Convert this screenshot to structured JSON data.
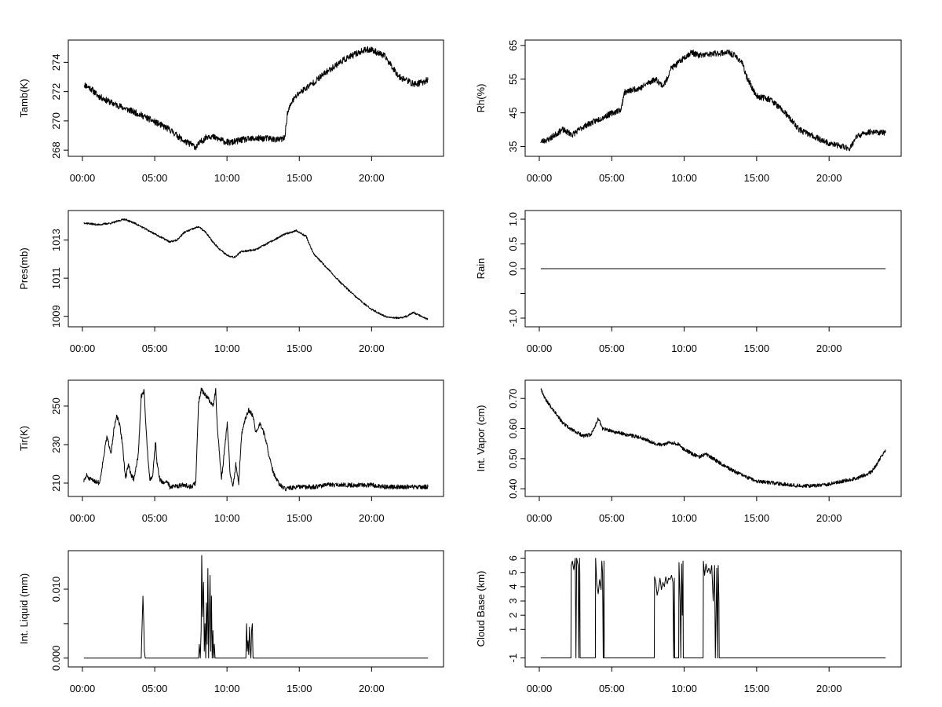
{
  "colors": {
    "background": "#ffffff",
    "line": "#000000"
  },
  "chart_data": [
    {
      "type": "line",
      "id": "tamb",
      "title": "",
      "xlabel": "",
      "ylabel": "Tamb(K)",
      "xlim": [
        0,
        24
      ],
      "ylim": [
        267.9,
        275.2
      ],
      "yticks": [
        268,
        270,
        272,
        274
      ],
      "xticks": [
        {
          "v": 0,
          "label": "00:00"
        },
        {
          "v": 5,
          "label": "05:00"
        },
        {
          "v": 10,
          "label": "10:00"
        },
        {
          "v": 15,
          "label": "15:00"
        },
        {
          "v": 20,
          "label": "20:00"
        }
      ],
      "noise": 0.22,
      "seed": 11,
      "series": [
        {
          "name": "Tamb",
          "x": [
            0,
            0.5,
            1,
            2,
            3,
            4,
            5,
            6,
            6.5,
            7,
            7.5,
            7.8,
            8.2,
            8.7,
            9.3,
            9.8,
            10.2,
            11,
            12,
            13,
            13.5,
            14,
            14.2,
            14.5,
            15,
            16,
            17,
            18,
            19,
            19.5,
            20,
            21,
            22,
            22.5,
            23,
            23.5,
            24
          ],
          "values": [
            272.5,
            272.2,
            271.7,
            271.2,
            270.8,
            270.4,
            269.9,
            269.4,
            269.0,
            268.6,
            268.4,
            268.2,
            268.6,
            269.0,
            268.8,
            268.6,
            268.5,
            268.7,
            268.8,
            268.8,
            268.7,
            268.8,
            270.5,
            271.3,
            271.9,
            272.6,
            273.4,
            274.1,
            274.6,
            274.8,
            274.9,
            274.4,
            273.0,
            272.8,
            272.5,
            272.6,
            272.8
          ]
        }
      ]
    },
    {
      "type": "line",
      "id": "rh",
      "title": "",
      "xlabel": "",
      "ylabel": "Rh(%)",
      "xlim": [
        0,
        24
      ],
      "ylim": [
        33.5,
        65.2
      ],
      "yticks": [
        35,
        45,
        55,
        65
      ],
      "xticks": [
        {
          "v": 0,
          "label": "00:00"
        },
        {
          "v": 5,
          "label": "05:00"
        },
        {
          "v": 10,
          "label": "10:00"
        },
        {
          "v": 15,
          "label": "15:00"
        },
        {
          "v": 20,
          "label": "20:00"
        }
      ],
      "noise": 0.9,
      "seed": 23,
      "series": [
        {
          "name": "Rh",
          "x": [
            0,
            0.5,
            1,
            1.5,
            2,
            2.2,
            3,
            4,
            5,
            5.6,
            5.8,
            6.5,
            7,
            7.5,
            8,
            8.5,
            8.8,
            9,
            9.5,
            10,
            10.5,
            11,
            12,
            13,
            13.5,
            14,
            14.3,
            15,
            16,
            17,
            18,
            19,
            20,
            21,
            21.5,
            22,
            23,
            24
          ],
          "values": [
            36.5,
            37,
            38.5,
            40,
            39,
            38.5,
            41,
            43,
            45,
            46,
            51,
            52,
            52.5,
            54,
            55,
            53,
            55,
            58,
            59.5,
            61.5,
            63,
            62,
            62.5,
            63,
            62,
            60,
            56,
            50,
            49,
            45,
            40,
            38,
            36,
            35,
            34.5,
            38,
            39.5,
            39
          ]
        }
      ]
    },
    {
      "type": "line",
      "id": "pres",
      "title": "",
      "xlabel": "",
      "ylabel": "Pres(mb)",
      "xlim": [
        0,
        24
      ],
      "ylim": [
        1008.7,
        1014.3
      ],
      "yticks": [
        1009,
        1011,
        1013
      ],
      "xticks": [
        {
          "v": 0,
          "label": "00:00"
        },
        {
          "v": 5,
          "label": "05:00"
        },
        {
          "v": 10,
          "label": "10:00"
        },
        {
          "v": 15,
          "label": "15:00"
        },
        {
          "v": 20,
          "label": "20:00"
        }
      ],
      "noise": 0.05,
      "seed": 37,
      "series": [
        {
          "name": "Pres",
          "x": [
            0,
            1,
            2,
            2.8,
            3.5,
            4,
            5,
            6,
            6.5,
            7,
            8,
            8.5,
            9,
            9.5,
            10,
            10.5,
            11,
            12,
            13,
            14,
            14.8,
            15.5,
            16,
            17,
            18,
            19,
            20,
            21,
            22,
            22.5,
            23,
            24
          ],
          "values": [
            1013.9,
            1013.8,
            1013.9,
            1014.1,
            1013.9,
            1013.7,
            1013.3,
            1012.9,
            1013.0,
            1013.4,
            1013.7,
            1013.4,
            1012.9,
            1012.5,
            1012.2,
            1012.1,
            1012.4,
            1012.5,
            1012.9,
            1013.3,
            1013.5,
            1013.2,
            1012.3,
            1011.5,
            1010.7,
            1010.0,
            1009.4,
            1009.0,
            1008.9,
            1009.0,
            1009.2,
            1008.85
          ]
        }
      ]
    },
    {
      "type": "line",
      "id": "rain",
      "title": "",
      "xlabel": "",
      "ylabel": "Rain",
      "xlim": [
        0,
        24
      ],
      "ylim": [
        -1.08,
        1.08
      ],
      "yticks": [
        -1.0,
        -0.5,
        0.0,
        0.5,
        1.0
      ],
      "ytick_labels": [
        "-1.0",
        "",
        "0.0",
        "0.5",
        "1.0"
      ],
      "xticks": [
        {
          "v": 0,
          "label": "00:00"
        },
        {
          "v": 5,
          "label": "05:00"
        },
        {
          "v": 10,
          "label": "10:00"
        },
        {
          "v": 15,
          "label": "15:00"
        },
        {
          "v": 20,
          "label": "20:00"
        }
      ],
      "noise": 0,
      "seed": 1,
      "series": [
        {
          "name": "Rain",
          "x": [
            0,
            24
          ],
          "values": [
            0,
            0
          ]
        }
      ]
    },
    {
      "type": "line",
      "id": "tir",
      "title": "",
      "xlabel": "",
      "ylabel": "Tir(K)",
      "xlim": [
        0,
        24
      ],
      "ylim": [
        205.5,
        261
      ],
      "yticks": [
        210,
        230,
        250
      ],
      "xticks": [
        {
          "v": 0,
          "label": "00:00"
        },
        {
          "v": 5,
          "label": "05:00"
        },
        {
          "v": 10,
          "label": "10:00"
        },
        {
          "v": 15,
          "label": "15:00"
        },
        {
          "v": 20,
          "label": "20:00"
        }
      ],
      "noise": 1.2,
      "seed": 51,
      "series": [
        {
          "name": "Tir",
          "x": [
            0,
            0.2,
            0.4,
            0.8,
            1.1,
            1.3,
            1.6,
            1.9,
            2.1,
            2.3,
            2.5,
            2.7,
            2.9,
            3.1,
            3.3,
            3.5,
            3.8,
            4.0,
            4.2,
            4.4,
            4.6,
            4.8,
            5.0,
            5.1,
            5.3,
            5.5,
            5.8,
            6,
            7,
            7.5,
            7.8,
            8.0,
            8.2,
            8.4,
            8.6,
            8.8,
            9.0,
            9.2,
            9.3,
            9.6,
            10.0,
            10.2,
            10.4,
            10.6,
            10.8,
            11.0,
            11.2,
            11.5,
            11.8,
            12.0,
            12.3,
            12.6,
            12.9,
            13.1,
            13.4,
            13.6,
            13.8,
            14,
            15,
            16,
            17,
            18,
            19,
            20,
            21,
            22,
            23,
            24
          ],
          "values": [
            211,
            214,
            212,
            211,
            210,
            220,
            234,
            226,
            238,
            245,
            240,
            230,
            212,
            220,
            214,
            212,
            225,
            255,
            258,
            230,
            212,
            214,
            232,
            220,
            212,
            210,
            211,
            208,
            209,
            208,
            210,
            252,
            259,
            256,
            255,
            252,
            250,
            258,
            240,
            212,
            241,
            215,
            208,
            220,
            210,
            235,
            242,
            248,
            245,
            236,
            241,
            235,
            225,
            218,
            212,
            210,
            208,
            207,
            208,
            208,
            209,
            209,
            209,
            209,
            208,
            208,
            208,
            208
          ]
        }
      ]
    },
    {
      "type": "line",
      "id": "vapor",
      "title": "",
      "xlabel": "",
      "ylabel": "Int. Vapor (cm)",
      "xlim": [
        0,
        24
      ],
      "ylim": [
        0.39,
        0.745
      ],
      "yticks": [
        0.4,
        0.5,
        0.6,
        0.7
      ],
      "ytick_labels": [
        "0.40",
        "0.50",
        "0.60",
        "0.70"
      ],
      "xticks": [
        {
          "v": 0,
          "label": "00:00"
        },
        {
          "v": 5,
          "label": "05:00"
        },
        {
          "v": 10,
          "label": "10:00"
        },
        {
          "v": 15,
          "label": "15:00"
        },
        {
          "v": 20,
          "label": "20:00"
        }
      ],
      "noise": 0.006,
      "seed": 67,
      "series": [
        {
          "name": "Int. Vapor",
          "x": [
            0,
            0.3,
            0.6,
            1,
            1.5,
            2,
            3,
            3.5,
            3.8,
            4.0,
            4.3,
            5,
            6,
            7,
            8,
            8.5,
            9,
            9.5,
            10,
            11,
            11.5,
            12,
            13,
            14,
            15,
            16,
            17,
            18,
            19,
            20,
            21,
            22,
            23,
            23.5,
            24
          ],
          "values": [
            0.735,
            0.7,
            0.68,
            0.655,
            0.62,
            0.6,
            0.575,
            0.58,
            0.61,
            0.635,
            0.6,
            0.59,
            0.58,
            0.57,
            0.55,
            0.545,
            0.555,
            0.55,
            0.53,
            0.505,
            0.515,
            0.5,
            0.47,
            0.445,
            0.425,
            0.42,
            0.415,
            0.41,
            0.41,
            0.415,
            0.425,
            0.435,
            0.455,
            0.49,
            0.53
          ]
        }
      ]
    },
    {
      "type": "line",
      "id": "liquid",
      "title": "",
      "xlabel": "",
      "ylabel": "Int. Liquid (mm)",
      "xlim": [
        0,
        24
      ],
      "ylim": [
        -0.0006,
        0.0149
      ],
      "yticks": [
        0.0,
        0.005,
        0.01
      ],
      "ytick_labels": [
        "0.000",
        "",
        "0.010"
      ],
      "xticks": [
        {
          "v": 0,
          "label": "00:00"
        },
        {
          "v": 5,
          "label": "05:00"
        },
        {
          "v": 10,
          "label": "10:00"
        },
        {
          "v": 15,
          "label": "15:00"
        },
        {
          "v": 20,
          "label": "20:00"
        }
      ],
      "noise": 0,
      "seed": 1,
      "series": [
        {
          "name": "Int. Liquid",
          "x": [
            0,
            4.0,
            4.05,
            4.12,
            4.18,
            4.22,
            4.28,
            8.0,
            8.05,
            8.12,
            8.18,
            8.22,
            8.28,
            8.35,
            8.4,
            8.45,
            8.5,
            8.55,
            8.6,
            8.65,
            8.7,
            8.75,
            8.8,
            8.85,
            8.9,
            8.95,
            9.0,
            9.05,
            9.1,
            9.15,
            9.2,
            11.3,
            11.35,
            11.4,
            11.45,
            11.5,
            11.55,
            11.6,
            11.65,
            11.7,
            11.75,
            11.8,
            11.9,
            24
          ],
          "values": [
            0,
            0,
            0.004,
            0.009,
            0.005,
            0.001,
            0,
            0,
            0.002,
            0,
            0.004,
            0.0149,
            0.006,
            0.011,
            0.001,
            0.005,
            0,
            0.008,
            0.002,
            0.013,
            0,
            0.006,
            0.012,
            0.001,
            0.009,
            0,
            0.004,
            0,
            0.002,
            0,
            0,
            0,
            0.005,
            0.001,
            0.0025,
            0.0005,
            0.0045,
            0.0015,
            0.0,
            0.004,
            0.005,
            0,
            0,
            0
          ]
        }
      ]
    },
    {
      "type": "line",
      "id": "cloudbase",
      "title": "",
      "xlabel": "",
      "ylabel": "Cloud Base (km)",
      "xlim": [
        0,
        24
      ],
      "ylim": [
        -1.3,
        6.2
      ],
      "yticks": [
        -1,
        1,
        2,
        3,
        4,
        5,
        6
      ],
      "ytick_labels": [
        "-1",
        "1",
        "2",
        "3",
        "4",
        "5",
        "6"
      ],
      "xticks": [
        {
          "v": 0,
          "label": "00:00"
        },
        {
          "v": 5,
          "label": "05:00"
        },
        {
          "v": 10,
          "label": "10:00"
        },
        {
          "v": 15,
          "label": "15:00"
        },
        {
          "v": 20,
          "label": "20:00"
        }
      ],
      "noise": 0,
      "seed": 1,
      "series": [
        {
          "name": "Cloud Base",
          "x": [
            0,
            2.1,
            2.12,
            2.2,
            2.3,
            2.4,
            2.45,
            2.5,
            2.6,
            2.65,
            2.7,
            2.72,
            2.74,
            3.8,
            3.82,
            3.9,
            4.0,
            4.1,
            4.2,
            4.25,
            4.3,
            4.35,
            4.4,
            4.42,
            7.9,
            7.92,
            8.0,
            8.1,
            8.2,
            8.3,
            8.4,
            8.5,
            8.6,
            8.7,
            8.8,
            8.9,
            9.0,
            9.1,
            9.2,
            9.25,
            9.3,
            9.32,
            9.6,
            9.62,
            9.7,
            9.75,
            9.8,
            9.85,
            9.9,
            9.92,
            11.3,
            11.32,
            11.4,
            11.5,
            11.6,
            11.7,
            11.8,
            11.9,
            12.0,
            12.1,
            12.15,
            12.2,
            12.25,
            12.3,
            12.35,
            12.4,
            12.42,
            24
          ],
          "values": [
            -1,
            -1,
            5.5,
            5.8,
            5.2,
            6,
            -1,
            6,
            5.5,
            -1,
            6,
            5,
            -1,
            -1,
            6,
            4.2,
            3.5,
            4.5,
            3.8,
            5.8,
            5,
            -1,
            5.8,
            -1,
            -1,
            4.7,
            4.4,
            3.4,
            3.9,
            4.6,
            3.8,
            4.3,
            4.0,
            4.7,
            4.2,
            4.6,
            4.5,
            4.8,
            4.3,
            -1,
            4.6,
            -1,
            -1,
            5.7,
            3.0,
            -1,
            5.6,
            2.0,
            5.8,
            -1,
            -1,
            5.8,
            4.8,
            5.6,
            5.0,
            5.3,
            4.9,
            5.5,
            3.0,
            5.5,
            -1,
            2.0,
            5.3,
            -1,
            5.5,
            3.0,
            -1,
            -1
          ]
        }
      ]
    }
  ]
}
